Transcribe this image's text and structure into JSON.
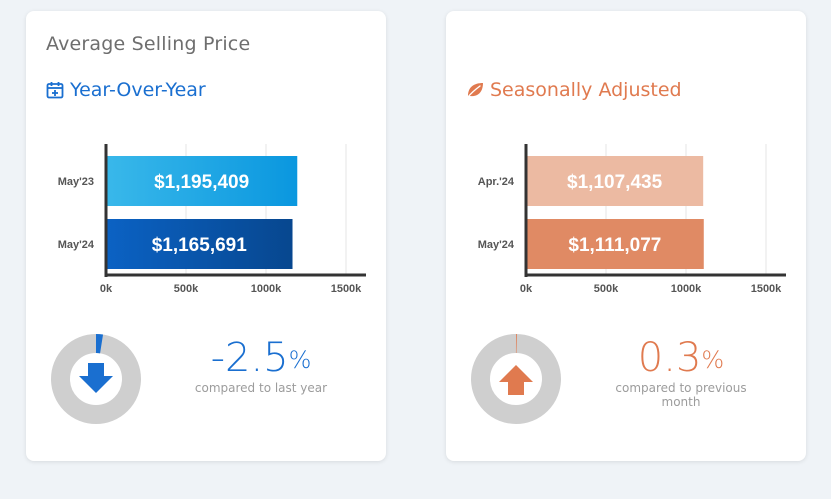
{
  "colors": {
    "blue": "#1a6fd0",
    "orange": "#e07a4f",
    "axis": "#333333",
    "grid": "#e6e6e6",
    "donut_ring": "#cfcfcf"
  },
  "cards": [
    {
      "title": "Average Selling Price",
      "subtitle": "Year-Over-Year",
      "subtitle_icon": "calendar-plus-icon",
      "stat_value": "-2.5",
      "stat_unit": "%",
      "stat_caption": "compared to last year",
      "direction_icon": "arrow-down-icon"
    },
    {
      "title": "",
      "subtitle": "Seasonally Adjusted",
      "subtitle_icon": "leaf-icon",
      "stat_value": "0.3",
      "stat_unit": "%",
      "stat_caption": "compared to previous month",
      "direction_icon": "arrow-up-icon"
    }
  ],
  "chart_data": [
    {
      "type": "bar",
      "orientation": "horizontal",
      "categories": [
        "May'23",
        "May'24"
      ],
      "values": [
        1195409,
        1165691
      ],
      "value_labels": [
        "$1,195,409",
        "$1,165,691"
      ],
      "xlim": [
        0,
        1500000
      ],
      "xticks": [
        "0k",
        "500k",
        "1000k",
        "1500k"
      ],
      "bar_colors": [
        [
          "#39b8ea",
          "#0a97df"
        ],
        [
          "#0b62c4",
          "#07478f"
        ]
      ],
      "grid": true,
      "gauge_fraction": 0.025
    },
    {
      "type": "bar",
      "orientation": "horizontal",
      "categories": [
        "Apr.'24",
        "May'24"
      ],
      "values": [
        1107435,
        1111077
      ],
      "value_labels": [
        "$1,107,435",
        "$1,111,077"
      ],
      "xlim": [
        0,
        1500000
      ],
      "xticks": [
        "0k",
        "500k",
        "1000k",
        "1500k"
      ],
      "bar_colors": [
        [
          "#ecbaa2",
          "#ecbaa2"
        ],
        [
          "#e08a64",
          "#e08a64"
        ]
      ],
      "grid": true,
      "gauge_fraction": 0.003
    }
  ]
}
